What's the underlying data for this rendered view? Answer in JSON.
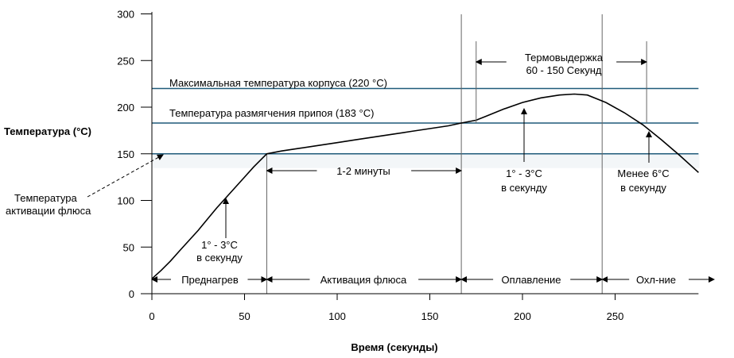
{
  "chart_data": {
    "type": "line",
    "xlabel": "Время (секунды)",
    "ylabel": "Температура (°C)",
    "xlim": [
      0,
      295
    ],
    "ylim": [
      0,
      300
    ],
    "x_ticks": [
      0,
      50,
      100,
      150,
      200,
      250
    ],
    "y_ticks": [
      0,
      50,
      100,
      150,
      200,
      250,
      300
    ],
    "grid": false,
    "series": [
      {
        "x": [
          0,
          5,
          10,
          15,
          20,
          25,
          30,
          35,
          40,
          45,
          50,
          55,
          60,
          62,
          70,
          80,
          90,
          100,
          110,
          120,
          130,
          140,
          150,
          160,
          167,
          175,
          180,
          190,
          200,
          210,
          220,
          228,
          235,
          245,
          255,
          265,
          275,
          285,
          295
        ],
        "values": [
          16,
          25,
          35,
          46,
          57,
          68,
          80,
          92,
          103,
          114,
          125,
          136,
          146,
          150,
          153,
          156,
          159,
          162,
          165,
          168,
          171,
          174,
          177,
          180,
          183,
          186,
          190,
          198,
          205,
          210,
          213,
          214,
          213,
          205,
          194,
          181,
          165,
          148,
          130
        ]
      }
    ],
    "reference_lines": [
      {
        "y": 220,
        "label": "Максимальная температура корпуса (220 °C)"
      },
      {
        "y": 183,
        "label": "Температура размягчения припоя (183 °C)"
      },
      {
        "y": 150,
        "label": ""
      }
    ],
    "phase_boundaries": [
      62,
      167,
      243
    ],
    "phases": [
      {
        "label": "Преднагрев",
        "x_from": 0,
        "x_to": 62
      },
      {
        "label": "Активация флюса",
        "x_from": 62,
        "x_to": 167
      },
      {
        "label": "Оплавление",
        "x_from": 167,
        "x_to": 243
      },
      {
        "label": "Охл-ние",
        "x_from": 243,
        "x_to": 295
      }
    ],
    "annotations": {
      "flux_activation_line1": "Температура",
      "flux_activation_line2": "активации флюса",
      "ramp_up_line1": "1° - 3°C",
      "ramp_up_line2": "в секунду",
      "minutes": "1-2 минуты",
      "soak_line1": "Термовыдержка",
      "soak_line2": "60 - 150 Секунд",
      "reflow_ramp_line1": "1° - 3°C",
      "reflow_ramp_line2": "в секунду",
      "cool_line1": "Менее 6°C",
      "cool_line2": "в секунду"
    }
  }
}
